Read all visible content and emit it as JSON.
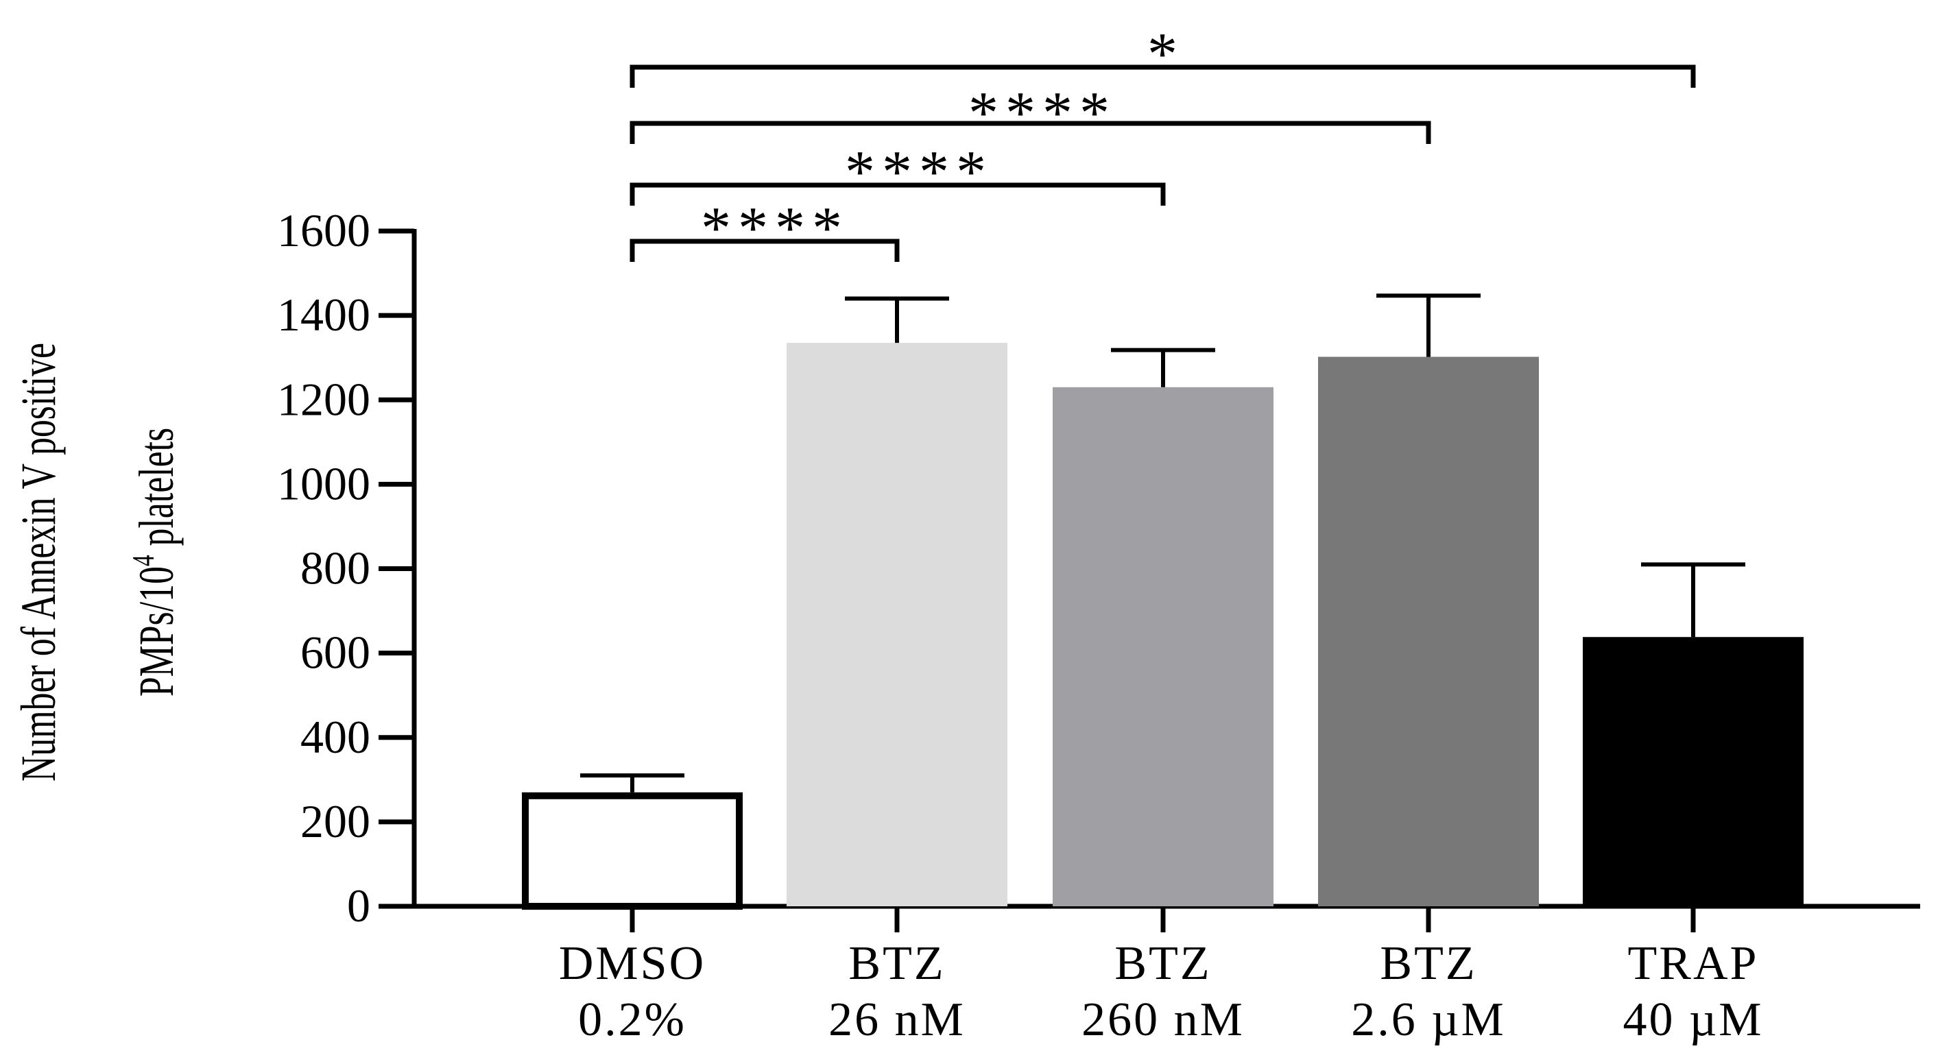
{
  "chart_data": {
    "type": "bar",
    "ylabel_line1": "Number of Annexin V positive",
    "ylabel_line2_main": "PMPs/10",
    "ylabel_line2_sup": "4",
    "ylabel_line2_rest": " platelets",
    "ylim": [
      0,
      1600
    ],
    "yticks": [
      0,
      200,
      400,
      600,
      800,
      1000,
      1200,
      1400,
      1600
    ],
    "categories": [
      {
        "line1": "DMSO",
        "line2": "0.2%"
      },
      {
        "line1": "BTZ",
        "line2": "26 nM"
      },
      {
        "line1": "BTZ",
        "line2": "260 nM"
      },
      {
        "line1": "BTZ",
        "line2": "2.6 µM"
      },
      {
        "line1": "TRAP",
        "line2": "40 µM"
      }
    ],
    "values": [
      270,
      1335,
      1230,
      1302,
      638
    ],
    "errors": [
      40,
      105,
      88,
      145,
      172
    ],
    "colors": [
      "#ffffff",
      "#dcdcdc",
      "#a0a0a4",
      "#787878",
      "#000000"
    ],
    "significance": [
      {
        "from": 0,
        "to": 1,
        "label": "****"
      },
      {
        "from": 0,
        "to": 2,
        "label": "****"
      },
      {
        "from": 0,
        "to": 3,
        "label": "****"
      },
      {
        "from": 0,
        "to": 4,
        "label": "*"
      }
    ]
  }
}
